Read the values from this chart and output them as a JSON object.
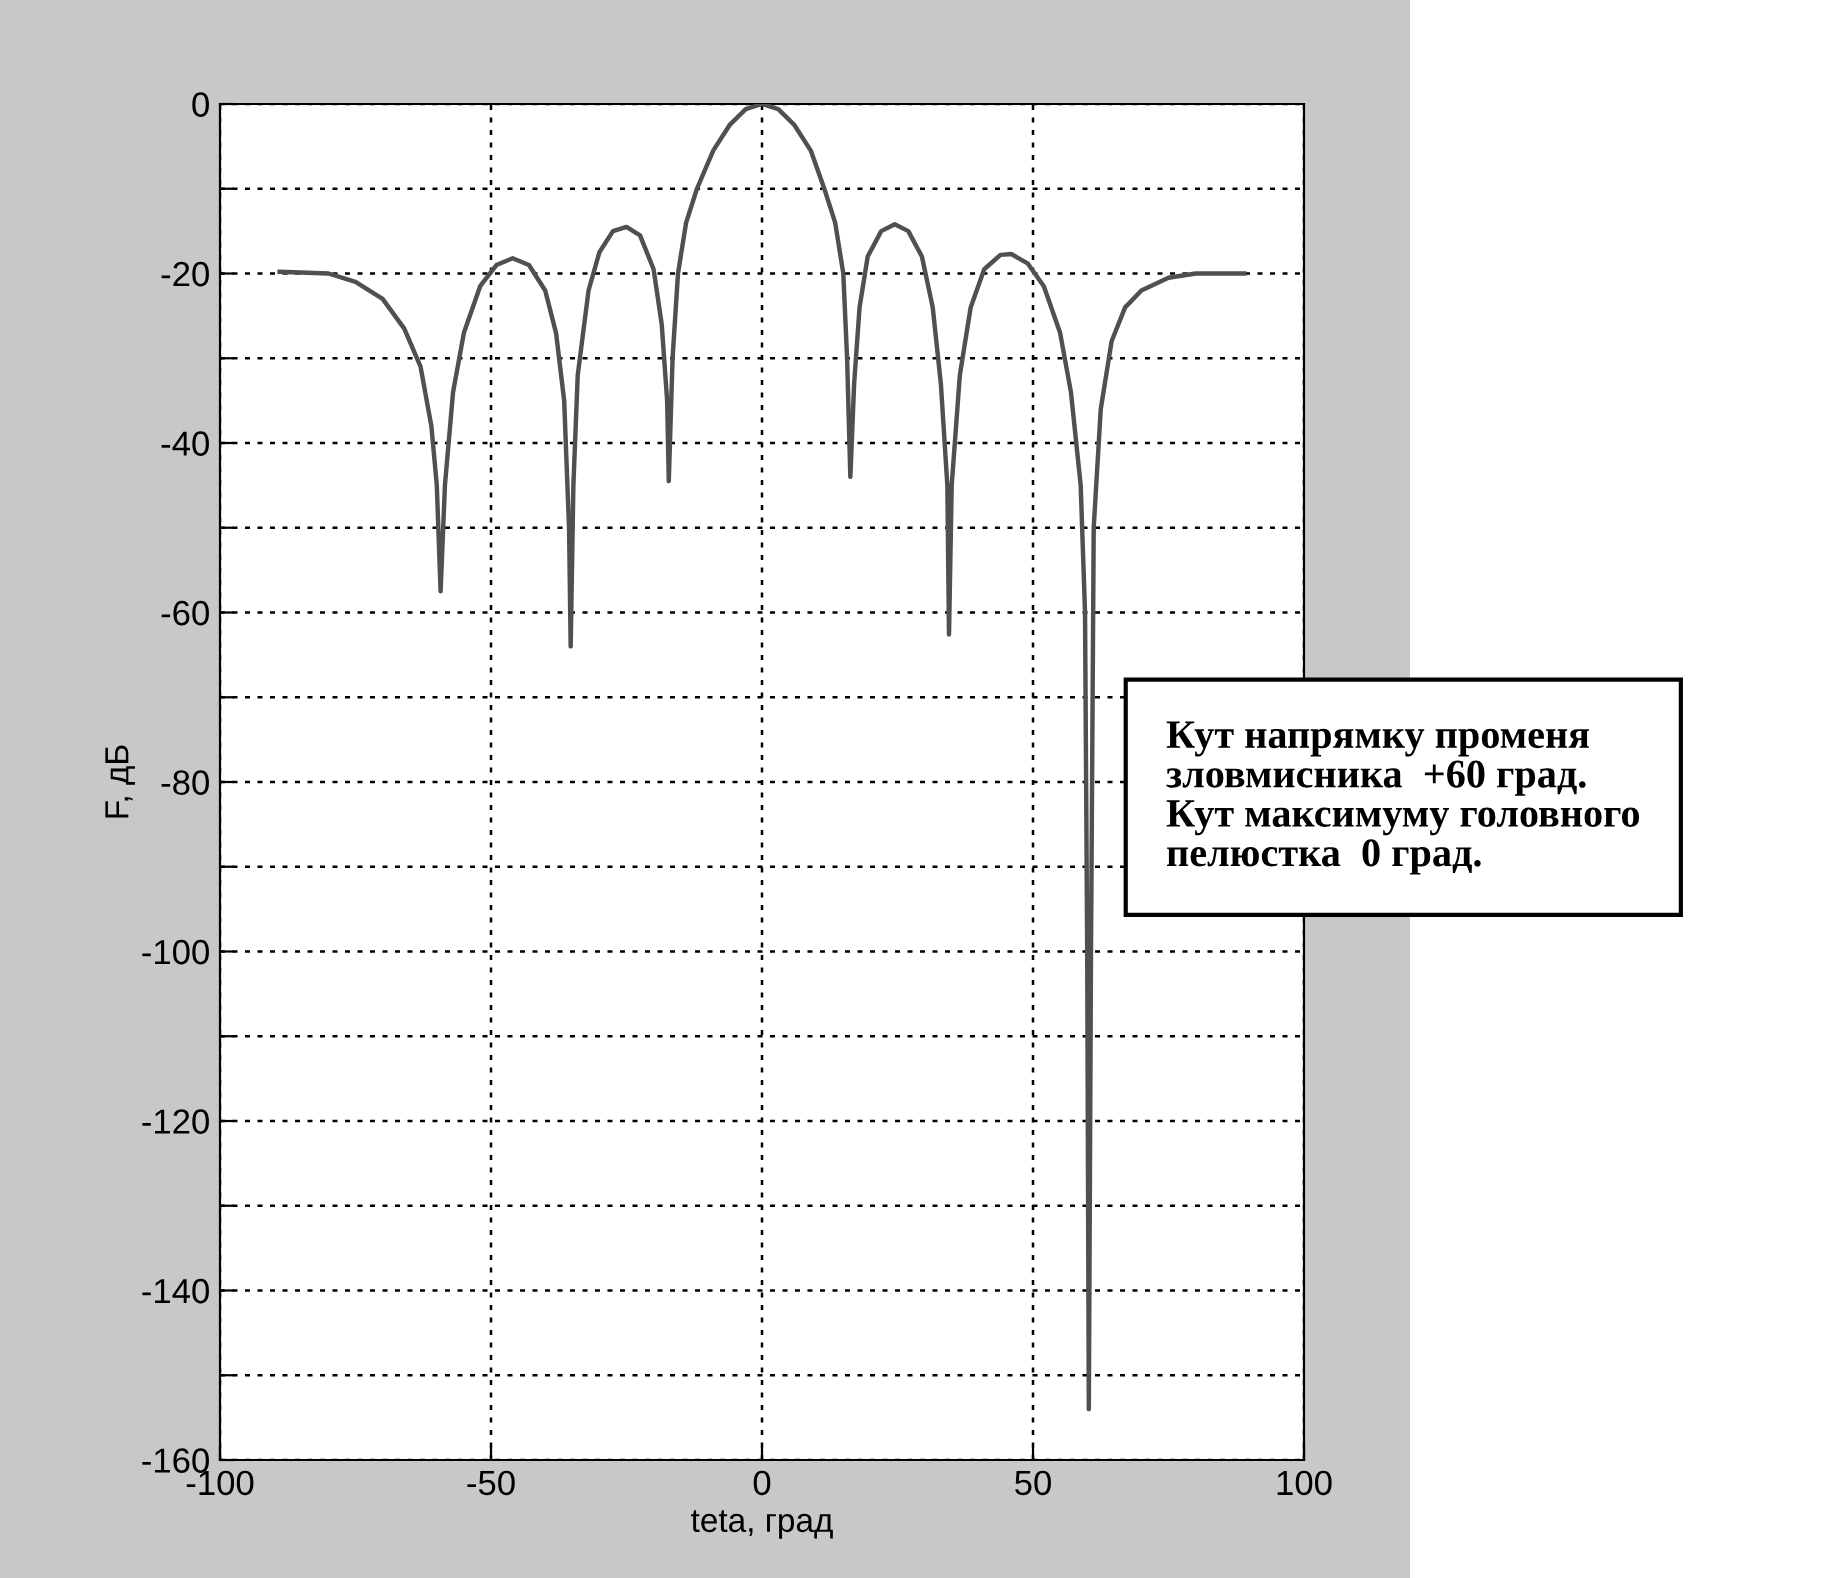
{
  "chart_data": {
    "type": "line",
    "xlabel": "teta, град",
    "ylabel": "F, дБ",
    "xlim": [
      -100,
      100
    ],
    "xticks": [
      -100,
      -50,
      0,
      50,
      100
    ],
    "ylim": [
      -160,
      0
    ],
    "yticks": [
      0,
      {
        "value": -10,
        "label": null
      },
      -20,
      {
        "value": -30,
        "label": null
      },
      -40,
      {
        "value": -50,
        "label": null
      },
      -60,
      {
        "value": -70,
        "label": null
      },
      -80,
      {
        "value": -90,
        "label": null
      },
      -100,
      {
        "value": -110,
        "label": null
      },
      -120,
      {
        "value": -130,
        "label": null
      },
      -140,
      {
        "value": -150,
        "label": null
      },
      -160
    ],
    "grid": true,
    "line_style": "solid",
    "marker": "none",
    "legend": false,
    "annotations": [
      "Кут напрямку променя\nзловмисника  +60 град.\nКут максимуму головного\nпелюстка  0 град."
    ],
    "x": [
      -89,
      -80,
      -75,
      -70,
      -66,
      -63,
      -61,
      -60,
      -59.3,
      -58.5,
      -57,
      -55,
      -52,
      -49,
      -46,
      -43,
      -40,
      -38,
      -36.5,
      -35.6,
      -35.3,
      -34.8,
      -34,
      -32,
      -30,
      -27.5,
      -25,
      -22.5,
      -20,
      -18.5,
      -17.5,
      -17.2,
      -16.5,
      -15.5,
      -14,
      -12,
      -9,
      -6,
      -3,
      0,
      3,
      6,
      9,
      11.5,
      13.5,
      15,
      15.7,
      16.3,
      17,
      18,
      19.5,
      22,
      24.5,
      27,
      29.5,
      31.5,
      33,
      34.2,
      34.5,
      35,
      36.5,
      38.5,
      41,
      44,
      46,
      49,
      52,
      55,
      57,
      58.8,
      59.6,
      60,
      60.3,
      60.7,
      61.2,
      62.5,
      64.5,
      67,
      70,
      75,
      80,
      89
    ],
    "series": [
      {
        "color": "#505050",
        "values": [
          -19.8,
          -20,
          -21,
          -23,
          -26.5,
          -31,
          -38,
          -45,
          -57.5,
          -45,
          -34,
          -27,
          -21.5,
          -19,
          -18.2,
          -19,
          -22,
          -27,
          -35,
          -50,
          -64,
          -45,
          -32,
          -22,
          -17.5,
          -15,
          -14.5,
          -15.5,
          -19.5,
          -26,
          -35,
          -44.5,
          -30,
          -20,
          -14,
          -10,
          -5.5,
          -2.5,
          -0.6,
          0,
          -0.6,
          -2.5,
          -5.5,
          -10,
          -14,
          -20,
          -30,
          -44,
          -33,
          -24,
          -18,
          -15,
          -14.2,
          -15,
          -18,
          -24,
          -33,
          -45,
          -62.6,
          -45,
          -32,
          -24,
          -19.5,
          -17.8,
          -17.7,
          -18.8,
          -21.5,
          -27,
          -34,
          -45,
          -60,
          -100,
          -154,
          -100,
          -50,
          -36,
          -28,
          -24,
          -22,
          -20.5,
          -20,
          -20
        ]
      }
    ]
  }
}
